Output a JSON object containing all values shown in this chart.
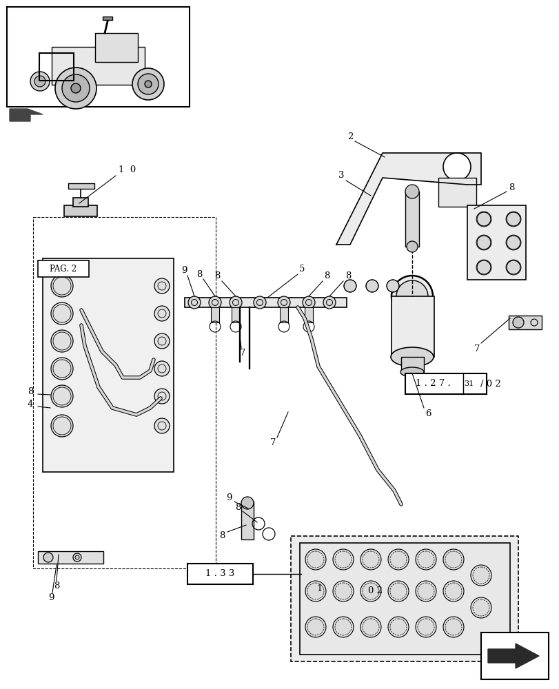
{
  "bg_color": "#ffffff",
  "line_color": "#000000",
  "light_gray": "#cccccc",
  "mid_gray": "#888888",
  "dark_gray": "#555555",
  "box1_text": "1 . 2 7 .",
  "box1_num": "31",
  "box1_suffix": "/ 0 2",
  "box2_text": "1 . 3 3",
  "pag_text": "PAG. 2",
  "figsize": [
    8.12,
    10.0
  ],
  "dpi": 100
}
